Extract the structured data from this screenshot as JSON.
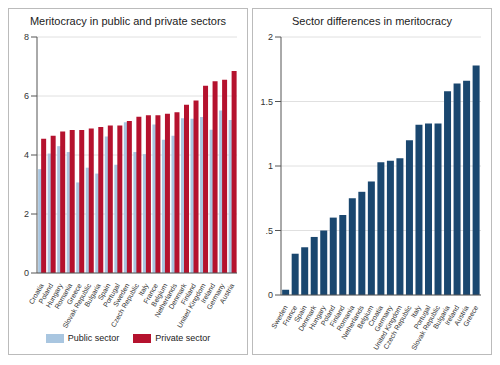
{
  "chart_data": [
    {
      "type": "bar",
      "title": "Meritocracy in public and private sectors",
      "categories": [
        "Croatia",
        "Poland",
        "Hungary",
        "Romania",
        "Greece",
        "Slovak Republic",
        "Bulgaria",
        "Spain",
        "Portugal",
        "Sweden",
        "Czech Republic",
        "Italy",
        "France",
        "Belgium",
        "Netherlands",
        "Denmark",
        "Finland",
        "United Kingdom",
        "Ireland",
        "Germany",
        "Austria"
      ],
      "series": [
        {
          "name": "Public sector",
          "color": "#a9c6e0",
          "values": [
            3.52,
            4.05,
            4.3,
            4.1,
            3.07,
            3.57,
            3.37,
            4.63,
            3.67,
            5.11,
            4.1,
            4.03,
            5.03,
            4.52,
            4.65,
            5.25,
            5.23,
            5.29,
            4.86,
            5.51,
            5.19
          ]
        },
        {
          "name": "Private sector",
          "color": "#b5122e",
          "values": [
            4.55,
            4.65,
            4.8,
            4.85,
            4.85,
            4.9,
            4.95,
            5.0,
            5.0,
            5.15,
            5.3,
            5.35,
            5.35,
            5.4,
            5.45,
            5.7,
            5.85,
            6.35,
            6.5,
            6.55,
            6.85
          ]
        }
      ],
      "ylim": [
        0,
        8
      ],
      "yticks": [
        0,
        2,
        4,
        6,
        8
      ],
      "grid": true,
      "legend": "bottom"
    },
    {
      "type": "bar",
      "title": "Sector differences in meritocracy",
      "categories": [
        "Sweden",
        "France",
        "Spain",
        "Denmark",
        "Hungary",
        "Poland",
        "Finland",
        "Romania",
        "Netherlands",
        "Belgium",
        "Croatia",
        "Germany",
        "United Kingdom",
        "Czech Republic",
        "Italy",
        "Portugal",
        "Slovak Republic",
        "Bulgaria",
        "Ireland",
        "Austria",
        "Greece"
      ],
      "values": [
        0.04,
        0.32,
        0.37,
        0.45,
        0.5,
        0.6,
        0.62,
        0.75,
        0.8,
        0.88,
        1.03,
        1.04,
        1.06,
        1.2,
        1.32,
        1.33,
        1.33,
        1.58,
        1.64,
        1.66,
        1.78
      ],
      "color": "#1a476f",
      "ylim": [
        0,
        2
      ],
      "yticks": [
        0,
        {
          "value": 0.5,
          "label": ".5"
        },
        1,
        1.5,
        2
      ],
      "grid": true
    }
  ]
}
